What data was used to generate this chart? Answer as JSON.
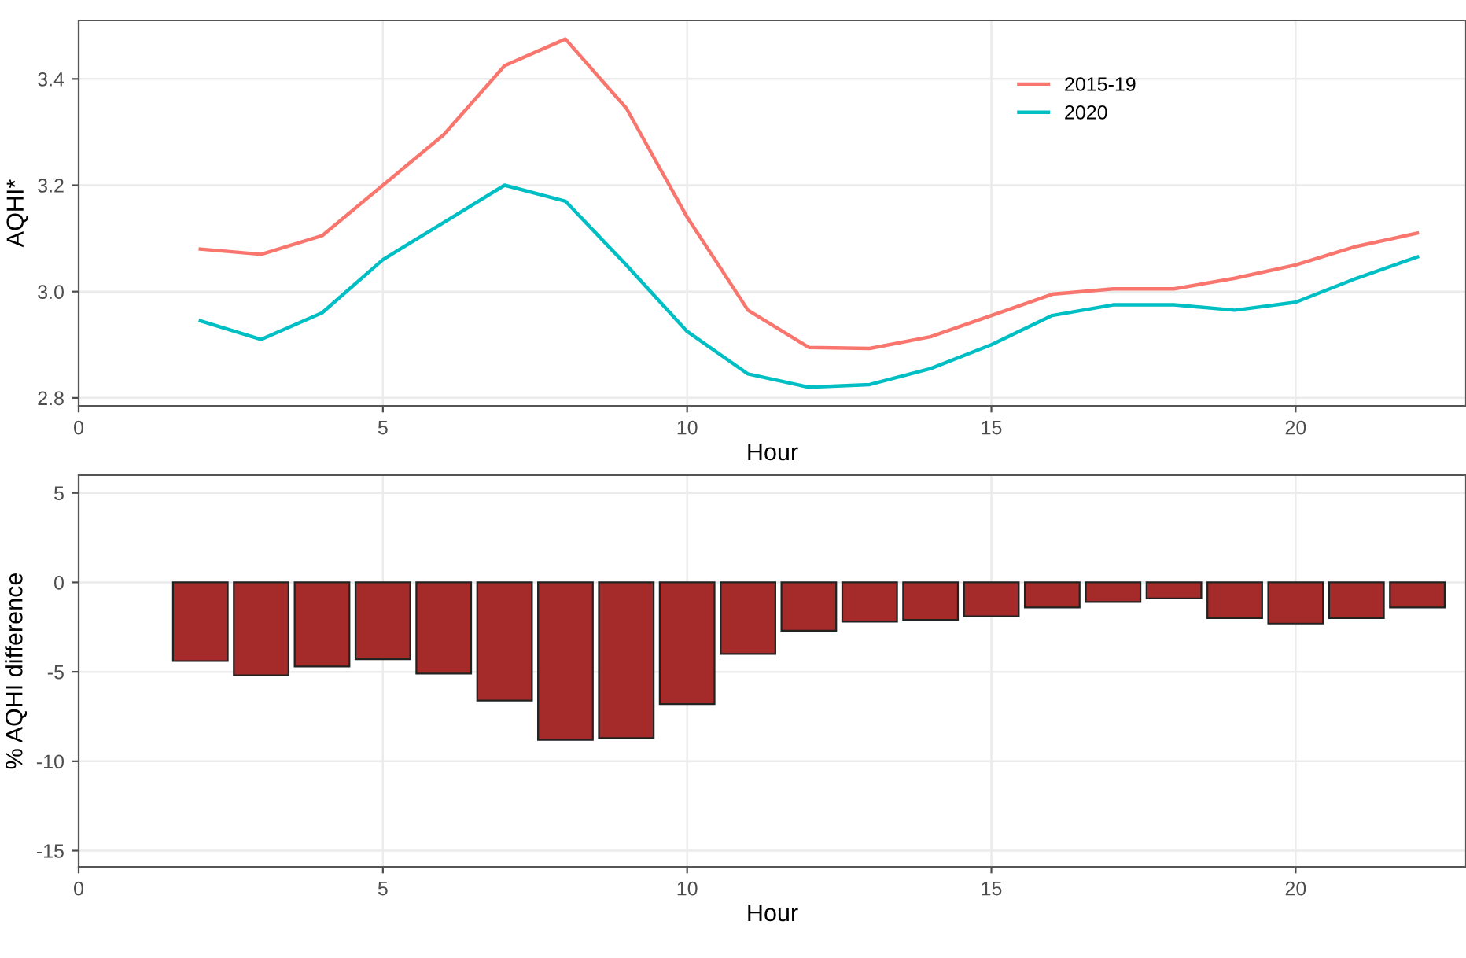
{
  "chart_data": [
    {
      "type": "line",
      "ylabel": "AQHI*",
      "xlabel": "Hour",
      "x": [
        2,
        3,
        4,
        5,
        6,
        7,
        8,
        9,
        10,
        11,
        12,
        13,
        14,
        15,
        16,
        17,
        18,
        19,
        20,
        21,
        22
      ],
      "series": [
        {
          "name": "2015-19",
          "color": "#f8766d",
          "values": [
            3.08,
            3.07,
            3.105,
            3.2,
            3.295,
            3.425,
            3.475,
            3.345,
            3.14,
            2.965,
            2.895,
            2.893,
            2.915,
            2.955,
            2.995,
            3.005,
            3.005,
            3.025,
            3.05,
            3.085,
            3.11
          ]
        },
        {
          "name": "2020",
          "color": "#00bfc4",
          "values": [
            2.945,
            2.91,
            2.96,
            3.06,
            3.13,
            3.2,
            3.17,
            3.05,
            2.925,
            2.845,
            2.82,
            2.825,
            2.855,
            2.9,
            2.955,
            2.975,
            2.975,
            2.965,
            2.98,
            3.025,
            3.065
          ]
        }
      ],
      "xlim": [
        0,
        22.8
      ],
      "xticks": [
        0,
        5,
        10,
        15,
        20
      ],
      "ylim": [
        2.785,
        3.51
      ],
      "yticks": [
        2.8,
        {
          "value": 3,
          "label": "3.0"
        },
        3.2,
        3.4
      ],
      "grid": true,
      "legend": "top"
    },
    {
      "type": "bar",
      "ylabel": "% AQHI difference",
      "xlabel": "Hour",
      "x": [
        2,
        3,
        4,
        5,
        6,
        7,
        8,
        9,
        10,
        11,
        12,
        13,
        14,
        15,
        16,
        17,
        18,
        19,
        20,
        21,
        22
      ],
      "values": [
        -4.4,
        -5.2,
        -4.7,
        -4.3,
        -5.1,
        -6.6,
        -8.8,
        -8.7,
        -6.8,
        -4.0,
        -2.7,
        -2.2,
        -2.1,
        -1.9,
        -1.4,
        -1.1,
        -0.9,
        -2.0,
        -2.3,
        -2.0,
        -1.4
      ],
      "color": "#a52a2a",
      "xlim": [
        0,
        22.8
      ],
      "xticks": [
        0,
        5,
        10,
        15,
        20
      ],
      "ylim": [
        -15.9,
        6.0
      ],
      "yticks": [
        -15,
        -10,
        -5,
        0,
        5
      ],
      "grid": true
    }
  ]
}
